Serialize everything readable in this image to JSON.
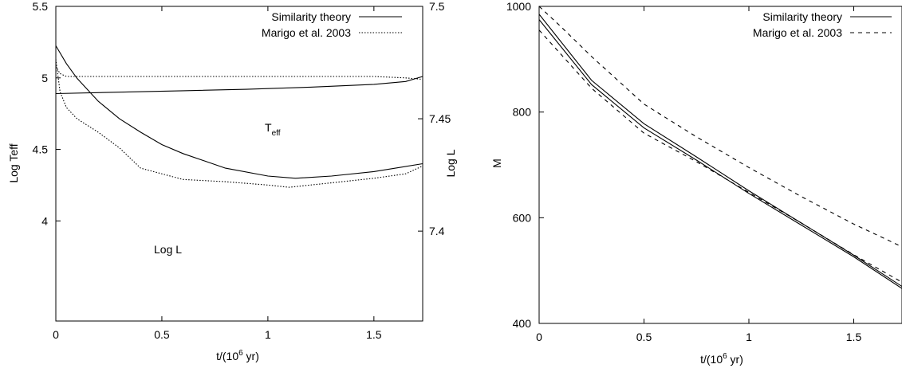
{
  "chart_data": [
    {
      "type": "line",
      "xlabel_base": "t/(10",
      "xlabel_exp": "6",
      "xlabel_tail": " yr)",
      "ylabel_left": "Log Teff",
      "ylabel_right": "Log L",
      "xlim": [
        0,
        1.73
      ],
      "ylim_left": [
        3.3,
        5.5
      ],
      "ylim_right": [
        7.36,
        7.5
      ],
      "xticks": [
        "0",
        "0.5",
        "1",
        "1.5"
      ],
      "yticks_left": [
        "4",
        "4.5",
        "5",
        "5.5"
      ],
      "yticks_right": [
        "7.4",
        "7.45",
        "7.5"
      ],
      "legend": [
        "Similarity theory",
        "Marigo et al. 2003"
      ],
      "legend_position": "top-right",
      "annotations": {
        "teff_base": "T",
        "teff_sub": "eff",
        "logl": "Log L"
      },
      "series": [
        {
          "name": "Similarity theory",
          "quantity": "Log Teff",
          "axis": "left",
          "style": "solid",
          "x": [
            0,
            0.3,
            0.6,
            0.9,
            1.2,
            1.5,
            1.65,
            1.73
          ],
          "y": [
            4.89,
            4.9,
            4.91,
            4.92,
            4.935,
            4.955,
            4.975,
            5.01
          ]
        },
        {
          "name": "Similarity theory",
          "quantity": "Log L",
          "axis": "right",
          "style": "solid",
          "x": [
            0,
            0.05,
            0.1,
            0.2,
            0.3,
            0.4,
            0.5,
            0.6,
            0.8,
            1.0,
            1.13,
            1.3,
            1.5,
            1.73
          ],
          "y": [
            7.4825,
            7.4745,
            7.468,
            7.4578,
            7.45,
            7.444,
            7.4385,
            7.4345,
            7.428,
            7.4245,
            7.4235,
            7.4245,
            7.4265,
            7.43
          ]
        },
        {
          "name": "Marigo et al. 2003",
          "quantity": "Log Teff",
          "axis": "left",
          "style": "dotted",
          "x": [
            0,
            0.02,
            0.05,
            0.2,
            0.5,
            1.0,
            1.5,
            1.65,
            1.73
          ],
          "y": [
            5.08,
            5.03,
            5.01,
            5.01,
            5.01,
            5.01,
            5.01,
            5.0,
            4.99
          ]
        },
        {
          "name": "Marigo et al. 2003",
          "quantity": "Log L",
          "axis": "right",
          "style": "dotted",
          "x": [
            0,
            0.02,
            0.05,
            0.1,
            0.2,
            0.3,
            0.4,
            0.6,
            0.8,
            1.0,
            1.1,
            1.3,
            1.5,
            1.65,
            1.73
          ],
          "y": [
            7.4765,
            7.462,
            7.455,
            7.45,
            7.444,
            7.437,
            7.428,
            7.423,
            7.422,
            7.4205,
            7.4195,
            7.4215,
            7.4235,
            7.4255,
            7.429
          ]
        }
      ]
    },
    {
      "type": "line",
      "xlabel_base": "t/(10",
      "xlabel_exp": "6",
      "xlabel_tail": " yr)",
      "ylabel": "M",
      "xlim": [
        0,
        1.73
      ],
      "ylim": [
        400,
        1000
      ],
      "xticks": [
        "0",
        "0.5",
        "1",
        "1.5"
      ],
      "yticks": [
        "400",
        "600",
        "800",
        "1000"
      ],
      "legend": [
        "Similarity theory",
        "Marigo et al. 2003"
      ],
      "legend_position": "top-right",
      "series": [
        {
          "name": "Similarity theory",
          "style": "solid",
          "x": [
            0,
            0.25,
            0.5,
            0.75,
            1.0,
            1.25,
            1.5,
            1.73
          ],
          "y": [
            985,
            860,
            778,
            715,
            651,
            590,
            529,
            470
          ]
        },
        {
          "name": "Similarity theory",
          "style": "solid",
          "x": [
            0,
            0.25,
            0.5,
            0.75,
            1.0,
            1.25,
            1.5,
            1.73
          ],
          "y": [
            975,
            852,
            770,
            709,
            646,
            586,
            526,
            466
          ]
        },
        {
          "name": "Marigo et al. 2003",
          "style": "dashed",
          "x": [
            0,
            0.1,
            0.25,
            0.5,
            0.75,
            1.0,
            1.25,
            1.5,
            1.73
          ],
          "y": [
            1000,
            963,
            905,
            815,
            753,
            695,
            640,
            588,
            545
          ]
        },
        {
          "name": "Marigo et al. 2003",
          "style": "dashed",
          "x": [
            0,
            0.25,
            0.5,
            0.75,
            1.0,
            1.25,
            1.5,
            1.73
          ],
          "y": [
            955,
            845,
            760,
            706,
            648,
            590,
            530,
            478
          ]
        }
      ]
    }
  ]
}
